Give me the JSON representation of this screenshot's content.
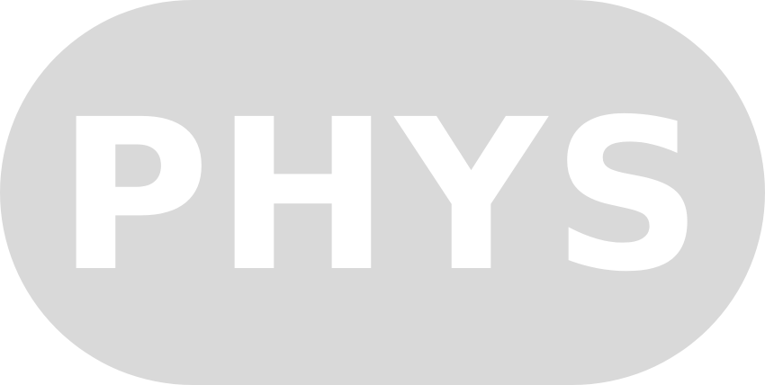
{
  "badge": {
    "label": "PHYS",
    "background_color": "#d9d9d9",
    "text_color": "#ffffff"
  }
}
